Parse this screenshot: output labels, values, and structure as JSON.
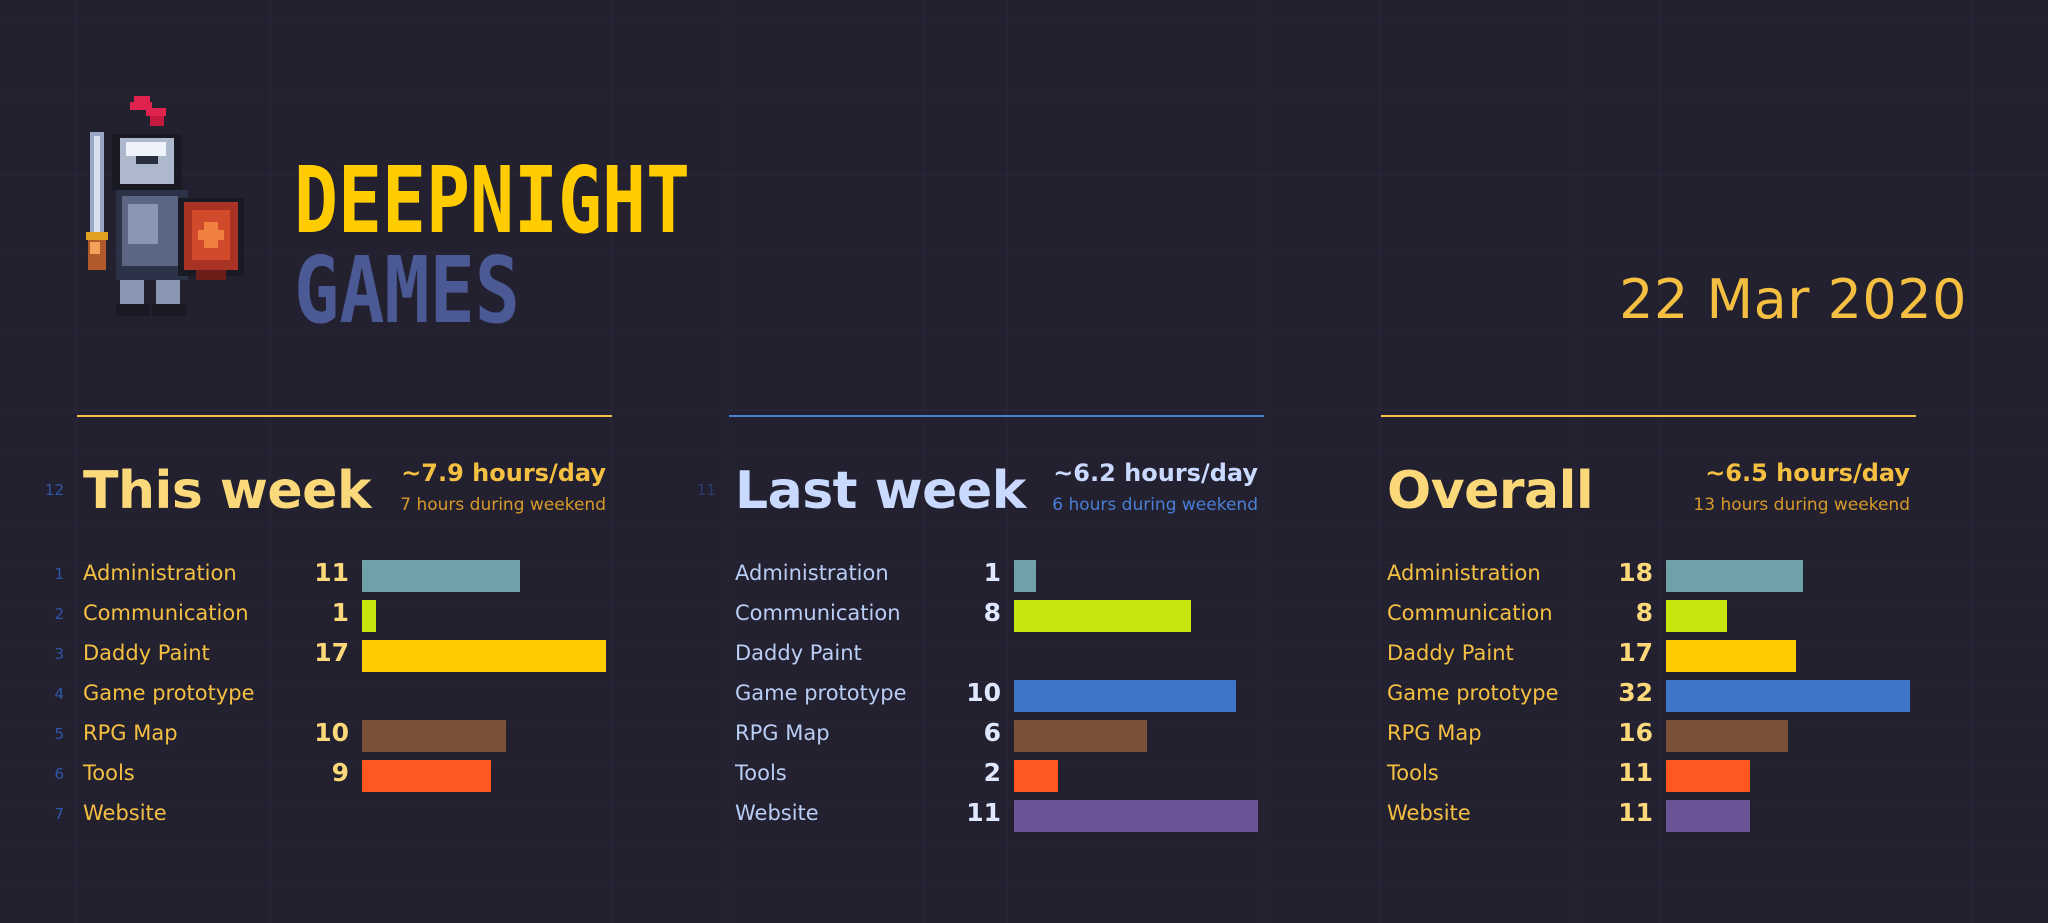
{
  "header": {
    "logo_line1": "DEEPNIGHT",
    "logo_line2": "GAMES",
    "date": "22 Mar 2020"
  },
  "colors": {
    "background": "#232030",
    "gold": "#f5c042",
    "blue": "#4a7fd6",
    "categories": {
      "Administration": "#6fa1ab",
      "Communication": "#c6e60d",
      "Daddy Paint": "#ffcc00",
      "Game prototype": "#3f74c9",
      "RPG Map": "#7a5039",
      "Tools": "#ff5722",
      "Website": "#6a5397"
    }
  },
  "panels": [
    {
      "title": "This week",
      "rate": "~7.9 hours/day",
      "weekend": "7 hours during weekend",
      "title_row_number": "12",
      "row_numbers": [
        "1",
        "2",
        "3",
        "4",
        "5",
        "6",
        "7"
      ],
      "rows": [
        {
          "label": "Administration",
          "value": "11"
        },
        {
          "label": "Communication",
          "value": "1"
        },
        {
          "label": "Daddy Paint",
          "value": "17"
        },
        {
          "label": "Game prototype",
          "value": ""
        },
        {
          "label": "RPG Map",
          "value": "10"
        },
        {
          "label": "Tools",
          "value": "9"
        },
        {
          "label": "Website",
          "value": ""
        }
      ]
    },
    {
      "title": "Last week",
      "rate": "~6.2 hours/day",
      "weekend": "6 hours during weekend",
      "title_row_number": "11",
      "rows": [
        {
          "label": "Administration",
          "value": "1"
        },
        {
          "label": "Communication",
          "value": "8"
        },
        {
          "label": "Daddy Paint",
          "value": ""
        },
        {
          "label": "Game prototype",
          "value": "10"
        },
        {
          "label": "RPG Map",
          "value": "6"
        },
        {
          "label": "Tools",
          "value": "2"
        },
        {
          "label": "Website",
          "value": "11"
        }
      ]
    },
    {
      "title": "Overall",
      "rate": "~6.5 hours/day",
      "weekend": "13 hours during weekend",
      "rows": [
        {
          "label": "Administration",
          "value": "18"
        },
        {
          "label": "Communication",
          "value": "8"
        },
        {
          "label": "Daddy Paint",
          "value": "17"
        },
        {
          "label": "Game prototype",
          "value": "32"
        },
        {
          "label": "RPG Map",
          "value": "16"
        },
        {
          "label": "Tools",
          "value": "11"
        },
        {
          "label": "Website",
          "value": "11"
        }
      ]
    }
  ],
  "chart_data": [
    {
      "type": "bar",
      "title": "This week",
      "categories": [
        "Administration",
        "Communication",
        "Daddy Paint",
        "Game prototype",
        "RPG Map",
        "Tools",
        "Website"
      ],
      "values": [
        11,
        1,
        17,
        0,
        10,
        9,
        0
      ],
      "xlim": [
        0,
        17
      ]
    },
    {
      "type": "bar",
      "title": "Last week",
      "categories": [
        "Administration",
        "Communication",
        "Daddy Paint",
        "Game prototype",
        "RPG Map",
        "Tools",
        "Website"
      ],
      "values": [
        1,
        8,
        0,
        10,
        6,
        2,
        11
      ],
      "xlim": [
        0,
        11
      ]
    },
    {
      "type": "bar",
      "title": "Overall",
      "categories": [
        "Administration",
        "Communication",
        "Daddy Paint",
        "Game prototype",
        "RPG Map",
        "Tools",
        "Website"
      ],
      "values": [
        18,
        8,
        17,
        32,
        16,
        11,
        11
      ],
      "xlim": [
        0,
        32
      ]
    }
  ]
}
